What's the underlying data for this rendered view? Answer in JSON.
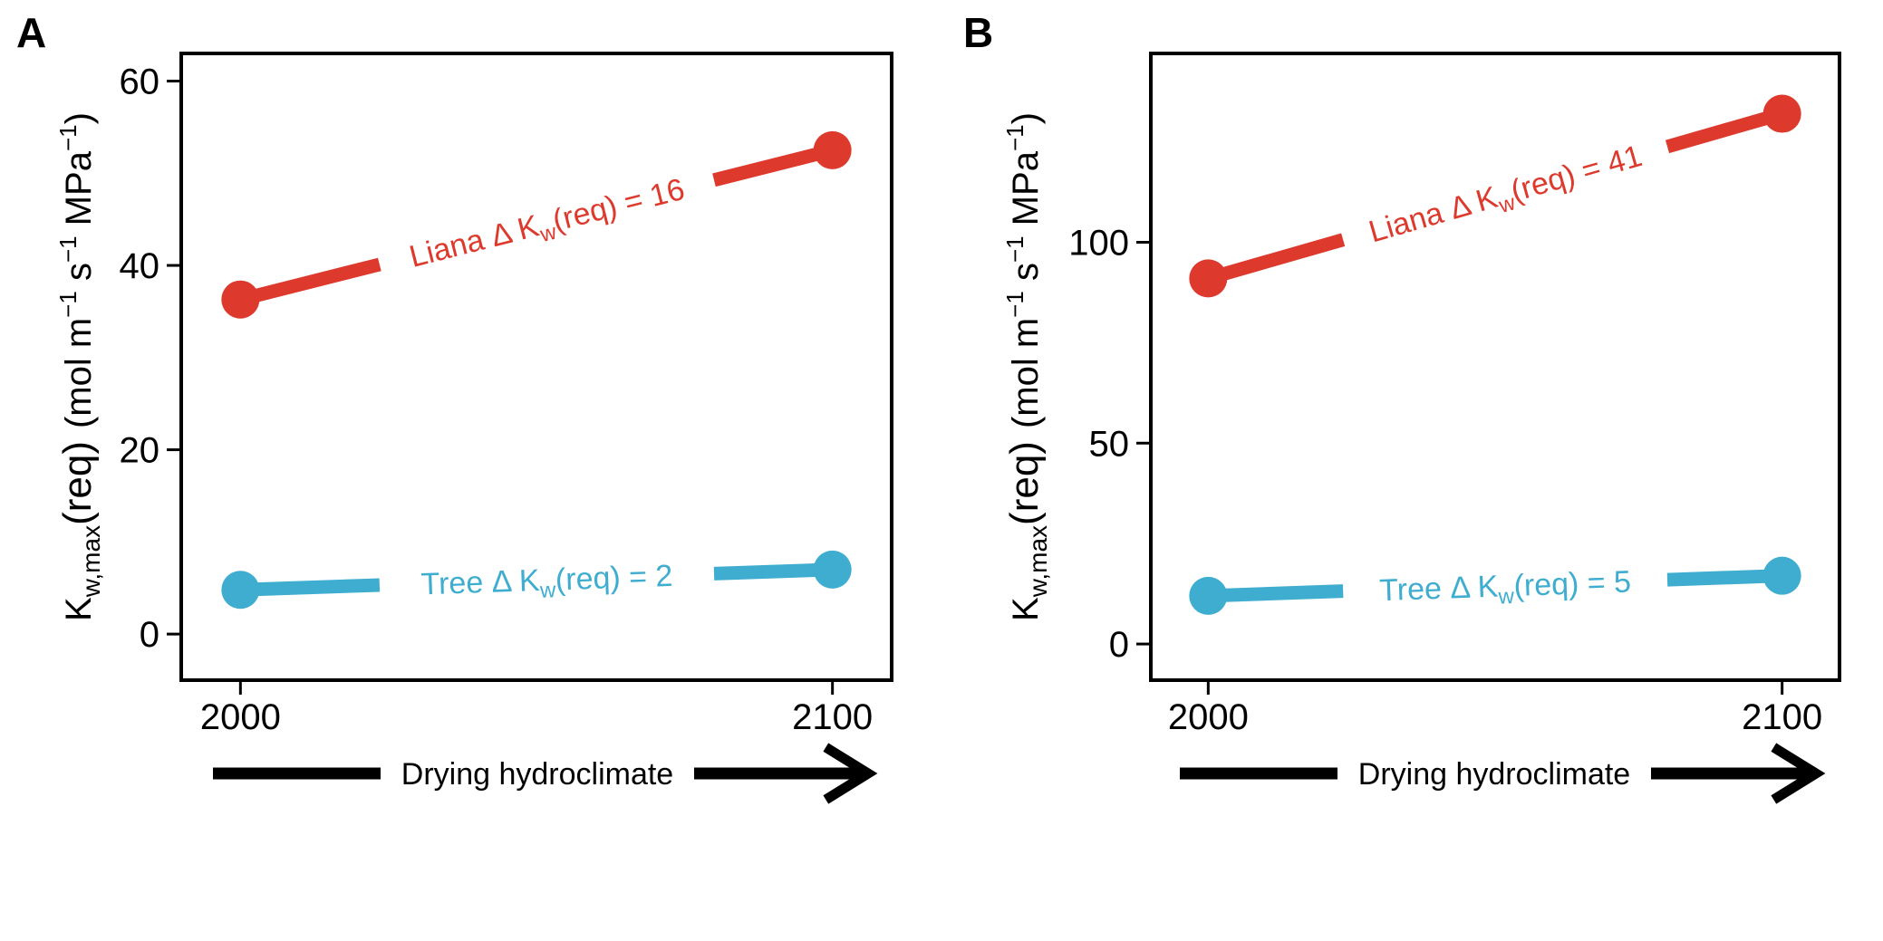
{
  "colors": {
    "liana": "#dd3a2d",
    "tree": "#3fadcf",
    "axis": "#000000",
    "background": "#ffffff"
  },
  "arrow_label": "Drying hydroclimate",
  "ylabel": {
    "main": "K",
    "sub": "w,max",
    "paren": "(req)",
    "units": "(mol m",
    "exp1": "−1",
    "s": " s",
    "exp2": "−1",
    "mpa": " MPa",
    "exp3": "−1",
    "close": ")"
  },
  "chart_data": [
    {
      "panel_label": "A",
      "type": "line",
      "x": [
        2000,
        2100
      ],
      "xticks": [
        "2000",
        "2100"
      ],
      "xlim": [
        1990,
        2110
      ],
      "ylim": [
        -5,
        63
      ],
      "yticks": [
        0,
        20,
        40,
        60
      ],
      "ytick_labels": [
        "0",
        "20",
        "40",
        "60"
      ],
      "series": [
        {
          "name": "Liana",
          "values": [
            36.3,
            52.5
          ],
          "color": "#dd3a2d",
          "annotation": {
            "prefix": "Liana  Δ K",
            "sub": "w",
            "suffix": "(req) = 16"
          }
        },
        {
          "name": "Tree",
          "values": [
            4.8,
            7.0
          ],
          "color": "#3fadcf",
          "annotation": {
            "prefix": "Tree  Δ K",
            "sub": "w",
            "suffix": "(req) = 2"
          }
        }
      ]
    },
    {
      "panel_label": "B",
      "type": "line",
      "x": [
        2000,
        2100
      ],
      "xticks": [
        "2000",
        "2100"
      ],
      "xlim": [
        1990,
        2110
      ],
      "ylim": [
        -9,
        147
      ],
      "yticks": [
        0,
        50,
        100
      ],
      "ytick_labels": [
        "0",
        "50",
        "100"
      ],
      "series": [
        {
          "name": "Liana",
          "values": [
            91.0,
            132.0
          ],
          "color": "#dd3a2d",
          "annotation": {
            "prefix": "Liana  Δ K",
            "sub": "w",
            "suffix": "(req) = 41"
          }
        },
        {
          "name": "Tree",
          "values": [
            12.0,
            17.0
          ],
          "color": "#3fadcf",
          "annotation": {
            "prefix": "Tree  Δ K",
            "sub": "w",
            "suffix": "(req) = 5"
          }
        }
      ]
    }
  ]
}
